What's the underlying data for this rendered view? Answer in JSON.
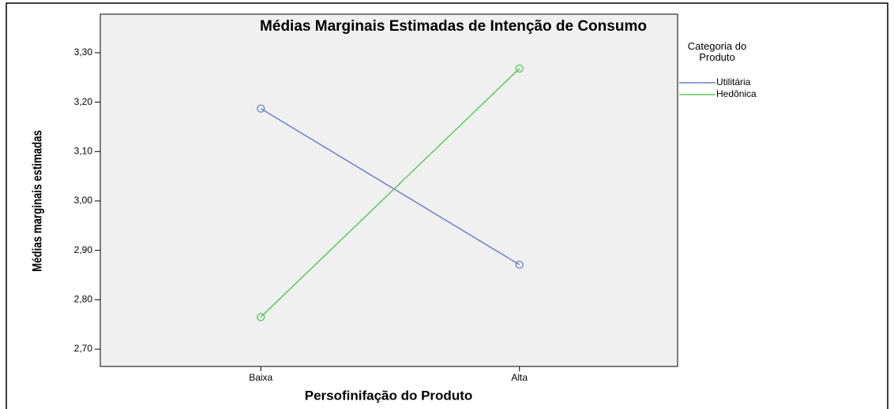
{
  "chart_data": {
    "type": "line",
    "title": "Médias Marginais Estimadas de Intenção de Consumo",
    "x_label": "Persofinifação do Produto",
    "y_label": "Médias marginais estimadas",
    "legend_title": "Categoria do Produto",
    "categories": [
      "Baixa",
      "Alta"
    ],
    "series": [
      {
        "name": "Utilitária",
        "color": "#6b7fc9",
        "values": [
          3.187,
          2.871
        ]
      },
      {
        "name": "Hedônica",
        "color": "#5cc85c",
        "values": [
          2.765,
          3.268
        ]
      }
    ],
    "ylim": [
      2.665,
      3.378
    ],
    "yticks": [
      {
        "value": 2.7,
        "label": "2,70"
      },
      {
        "value": 2.8,
        "label": "2,80"
      },
      {
        "value": 2.9,
        "label": "2,90"
      },
      {
        "value": 3.0,
        "label": "3,00"
      },
      {
        "value": 3.1,
        "label": "3,10"
      },
      {
        "value": 3.2,
        "label": "3,20"
      },
      {
        "value": 3.3,
        "label": "3,30"
      }
    ],
    "grid": false,
    "legend": "right"
  }
}
